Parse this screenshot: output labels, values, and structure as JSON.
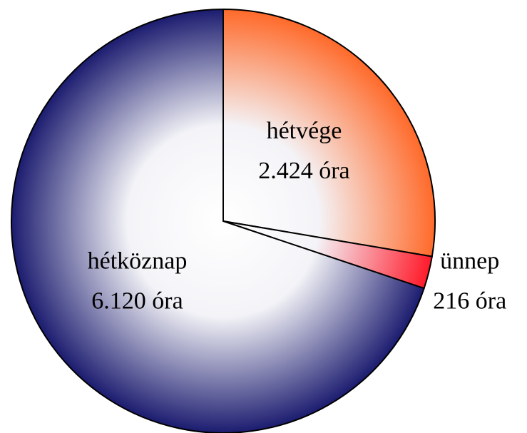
{
  "chart_data": {
    "type": "pie",
    "categories": [
      "hétvége",
      "ünnep",
      "hétköznap"
    ],
    "values": [
      2424,
      216,
      6120
    ],
    "value_labels": [
      "2.424 óra",
      "216 óra",
      "6.120 óra"
    ],
    "colors": [
      "#ff6a2a",
      "#ff1a2a",
      "#1c1c70"
    ]
  }
}
